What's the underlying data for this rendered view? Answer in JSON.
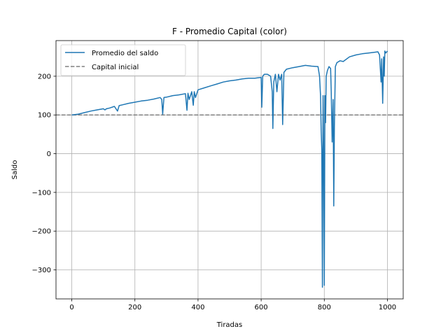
{
  "chart_data": {
    "type": "line",
    "title": "F - Promedio Capital (color)",
    "xlabel": "Tiradas",
    "ylabel": "Saldo",
    "xlim": [
      -50,
      1050
    ],
    "ylim": [
      -375,
      292
    ],
    "xticks": [
      0,
      200,
      400,
      600,
      800,
      1000
    ],
    "xtick_labels": [
      "0",
      "200",
      "400",
      "600",
      "800",
      "1000"
    ],
    "yticks": [
      -300,
      -200,
      -100,
      0,
      100,
      200
    ],
    "ytick_labels": [
      "−300",
      "−200",
      "−100",
      "0",
      "100",
      "200"
    ],
    "grid": true,
    "legend": "upper-left",
    "series": [
      {
        "name": "Promedio del saldo",
        "color": "#1f77b4",
        "style": "solid",
        "x": [
          0,
          20,
          40,
          60,
          80,
          100,
          105,
          110,
          120,
          135,
          145,
          150,
          160,
          180,
          200,
          220,
          240,
          260,
          280,
          285,
          288,
          292,
          300,
          320,
          340,
          360,
          365,
          368,
          372,
          380,
          385,
          388,
          392,
          400,
          420,
          440,
          460,
          480,
          500,
          520,
          540,
          560,
          580,
          590,
          600,
          602,
          605,
          610,
          620,
          630,
          635,
          637,
          640,
          645,
          650,
          655,
          660,
          665,
          668,
          672,
          680,
          700,
          720,
          740,
          760,
          780,
          785,
          788,
          790,
          792,
          794,
          796,
          798,
          800,
          802,
          804,
          806,
          810,
          815,
          820,
          822,
          825,
          828,
          830,
          832,
          835,
          840,
          850,
          860,
          880,
          900,
          920,
          940,
          960,
          970,
          975,
          980,
          982,
          985,
          988,
          990,
          992,
          995,
          1000
        ],
        "y": [
          100,
          102,
          106,
          110,
          113,
          116,
          113,
          116,
          118,
          122,
          110,
          124,
          126,
          130,
          133,
          136,
          138,
          141,
          145,
          140,
          102,
          145,
          146,
          150,
          152,
          155,
          112,
          156,
          140,
          160,
          125,
          160,
          145,
          165,
          170,
          175,
          180,
          185,
          188,
          190,
          193,
          195,
          195,
          196,
          197,
          120,
          200,
          205,
          205,
          200,
          160,
          65,
          185,
          205,
          160,
          205,
          190,
          205,
          75,
          210,
          218,
          222,
          225,
          228,
          226,
          225,
          200,
          150,
          60,
          10,
          -345,
          150,
          5,
          -340,
          150,
          80,
          200,
          215,
          225,
          220,
          160,
          30,
          140,
          -135,
          70,
          225,
          235,
          240,
          238,
          250,
          255,
          258,
          260,
          262,
          263,
          255,
          185,
          245,
          130,
          250,
          200,
          265,
          260,
          265
        ]
      },
      {
        "name": "Capital inicial",
        "color": "#808080",
        "style": "dashed",
        "x": [
          -50,
          1050
        ],
        "y": [
          100,
          100
        ]
      }
    ]
  }
}
